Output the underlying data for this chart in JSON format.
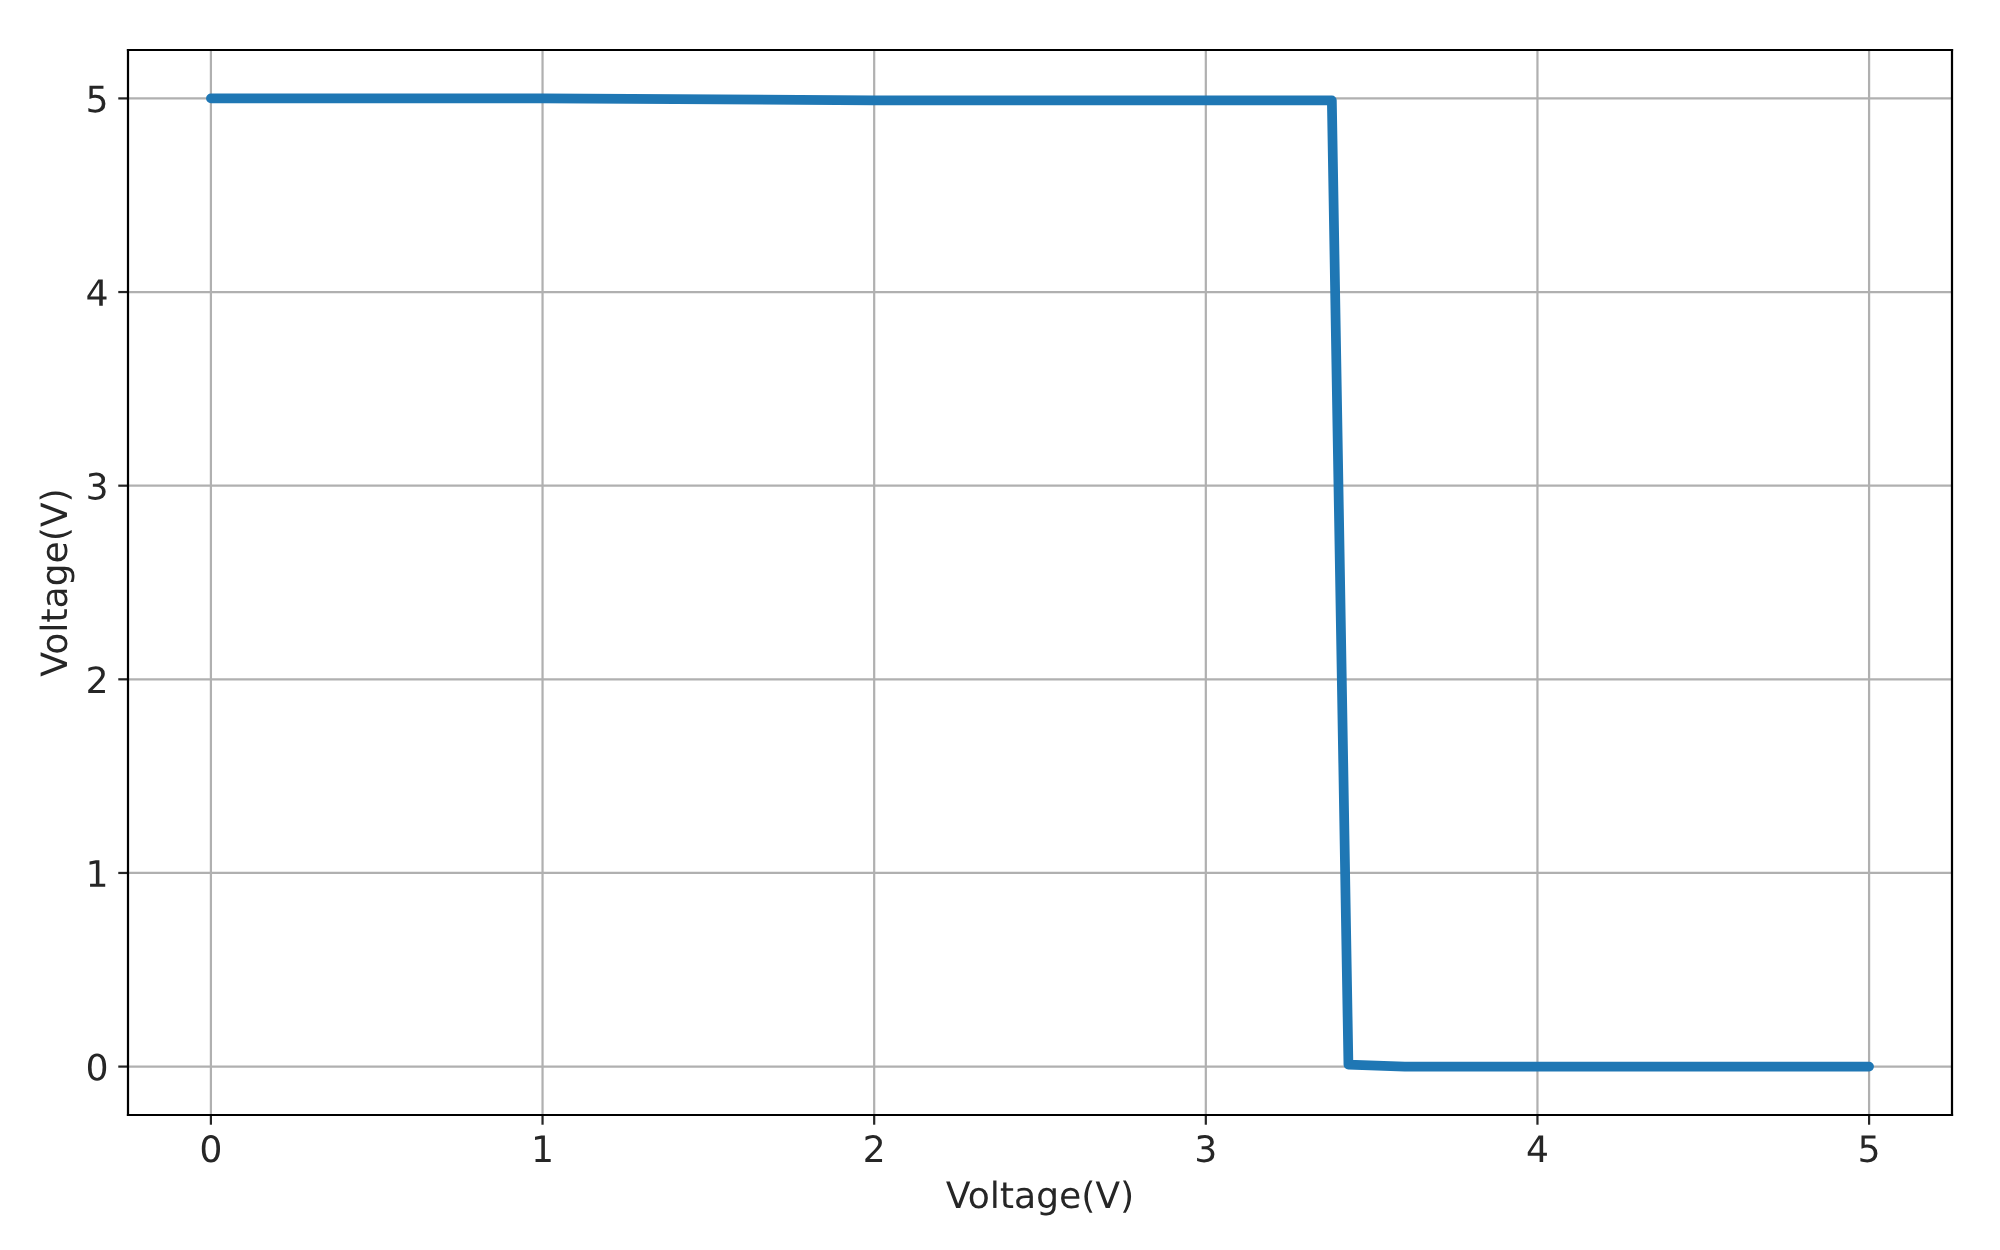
{
  "chart_data": {
    "type": "line",
    "xlabel": "Voltage(V)",
    "ylabel": "Voltage(V)",
    "series": [
      {
        "color": "#1f77b4",
        "x": [
          0,
          1,
          2,
          3,
          3.38,
          3.43,
          3.6,
          4,
          4.5,
          5
        ],
        "values": [
          5.0,
          5.0,
          4.99,
          4.99,
          4.99,
          0.01,
          0.0,
          0.0,
          0.0,
          0.0
        ]
      }
    ],
    "xlim": [
      -0.25,
      5.25
    ],
    "ylim": [
      -0.25,
      5.25
    ],
    "xticks": [
      0,
      1,
      2,
      3,
      4,
      5
    ],
    "yticks": [
      0,
      1,
      2,
      3,
      4,
      5
    ],
    "grid": true,
    "marker": "none",
    "line_style": "solid"
  }
}
